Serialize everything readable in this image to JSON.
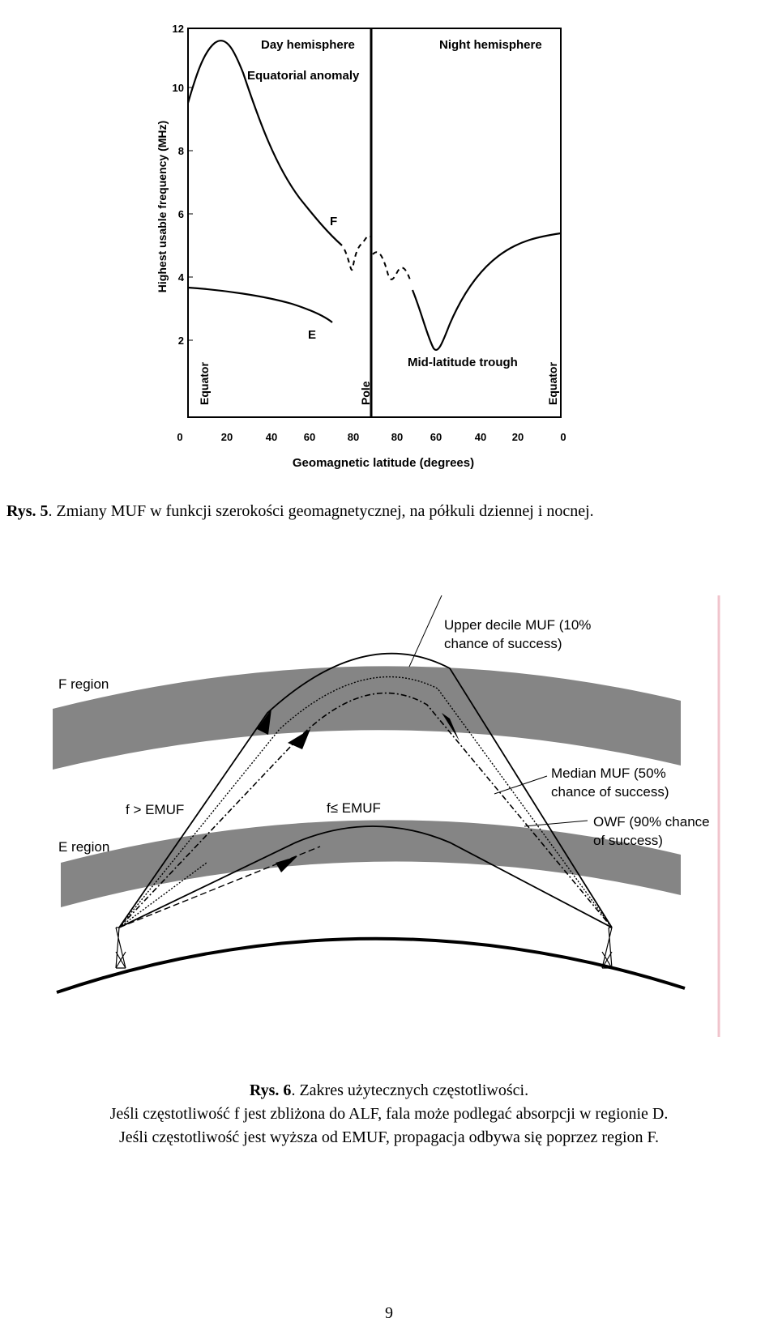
{
  "figure5": {
    "labels": {
      "day": "Day hemisphere",
      "night": "Night hemisphere",
      "anomaly": "Equatorial anomaly",
      "f": "F",
      "e": "E",
      "trough": "Mid-latitude trough",
      "equator_left": "Equator",
      "pole": "Pole",
      "equator_right": "Equator",
      "ylabel": "Highest usable frequency (MHz)",
      "xlabel": "Geomagnetic latitude (degrees)"
    },
    "yticks": [
      "2",
      "4",
      "6",
      "8",
      "10",
      "12"
    ],
    "xticks_day": [
      "0",
      "20",
      "40",
      "60",
      "80"
    ],
    "xticks_night": [
      "80",
      "60",
      "40",
      "20",
      "0"
    ]
  },
  "figure6": {
    "labels": {
      "f_region": "F region",
      "e_region": "E region",
      "upper_decile": [
        "Upper decile MUF (10%",
        "chance of success)"
      ],
      "median": [
        "Median MUF (50%",
        "chance of success)"
      ],
      "owf": [
        "OWF (90% chance",
        "of success)"
      ],
      "f_gt": "f > EMUF",
      "f_le": "f≤ EMUF"
    }
  },
  "captions": {
    "rys5_label": "Rys. 5",
    "rys5_text": ". Zmiany MUF w funkcji szerokości geomagnetycznej, na półkuli dziennej i nocnej.",
    "rys6_label": "Rys. 6",
    "rys6_text": ". Zakres użytecznych częstotliwości.",
    "line2": "Jeśli częstotliwość f jest zbliżona do ALF, fala może podlegać absorpcji w regionie D.",
    "line3": "Jeśli częstotliwość jest wyższa od EMUF, propagacja odbywa się poprzez region F."
  },
  "page_number": "9"
}
